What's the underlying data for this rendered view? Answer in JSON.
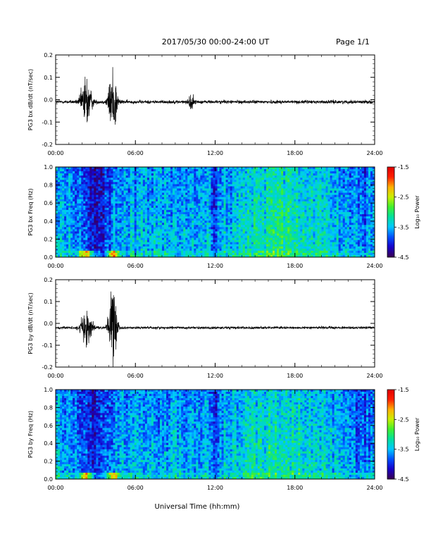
{
  "header": {
    "title": "2017/05/30  00:00-24:00 UT",
    "page": "Page 1/1"
  },
  "colors": {
    "trace": "#000000",
    "colormap": [
      "#3b0050",
      "#1800c8",
      "#0050ff",
      "#00c8ff",
      "#00e0a0",
      "#40f030",
      "#c8f000",
      "#ffb000",
      "#ff2000",
      "#e00000"
    ]
  },
  "chart_data": [
    {
      "type": "line",
      "ylabel": "PG3 bx dB/dt (nT/sec)",
      "ylim": [
        -0.2,
        0.2
      ],
      "yticks": [
        "0.2",
        "0.1",
        "0.0",
        "-0.1",
        "-0.2"
      ],
      "xlim": [
        0,
        24
      ],
      "xticks": [
        "00:00",
        "06:00",
        "12:00",
        "18:00",
        "24:00"
      ],
      "baseline": -0.01,
      "bursts": [
        {
          "center_hr": 2.3,
          "width_hr": 0.55,
          "amplitude": 0.13
        },
        {
          "center_hr": 4.3,
          "width_hr": 0.45,
          "amplitude": 0.17
        },
        {
          "center_hr": 10.2,
          "width_hr": 0.25,
          "amplitude": 0.05
        }
      ],
      "noise": 0.008
    },
    {
      "type": "heatmap",
      "ylabel": "PG3 bx Freq (Hz)",
      "ylim": [
        0.0,
        1.0
      ],
      "yticks": [
        "1.0",
        "0.8",
        "0.6",
        "0.4",
        "0.2",
        "0.0"
      ],
      "xlim": [
        0,
        24
      ],
      "xticks": [
        "00:00",
        "06:00",
        "12:00",
        "18:00",
        "24:00"
      ],
      "colorbar": {
        "label": "Log₁₀ Power",
        "ticks": [
          "-1.5",
          "-2.5",
          "-3.5",
          "-4.5"
        ],
        "range": [
          -4.5,
          -1.5
        ]
      }
    },
    {
      "type": "line",
      "ylabel": "PG3 by dB/dt (nT/sec)",
      "ylim": [
        -0.2,
        0.2
      ],
      "yticks": [
        "0.2",
        "0.1",
        "0.0",
        "-0.1",
        "-0.2"
      ],
      "xlim": [
        0,
        24
      ],
      "xticks": [
        "00:00",
        "06:00",
        "12:00",
        "18:00",
        "24:00"
      ],
      "baseline": -0.02,
      "bursts": [
        {
          "center_hr": 2.3,
          "width_hr": 0.6,
          "amplitude": 0.09
        },
        {
          "center_hr": 4.3,
          "width_hr": 0.45,
          "amplitude": 0.2
        }
      ],
      "noise": 0.006
    },
    {
      "type": "heatmap",
      "ylabel": "PG3 by Freq (Hz)",
      "ylim": [
        0.0,
        1.0
      ],
      "yticks": [
        "1.0",
        "0.8",
        "0.6",
        "0.4",
        "0.2",
        "0.0"
      ],
      "xlim": [
        0,
        24
      ],
      "xticks": [
        "00:00",
        "06:00",
        "12:00",
        "18:00",
        "24:00"
      ],
      "colorbar": {
        "label": "Log₁₀ Power",
        "ticks": [
          "-1.5",
          "-2.5",
          "-3.5",
          "-4.5"
        ],
        "range": [
          -4.5,
          -1.5
        ]
      }
    }
  ],
  "xlabel": "Universal Time (hh:mm)"
}
